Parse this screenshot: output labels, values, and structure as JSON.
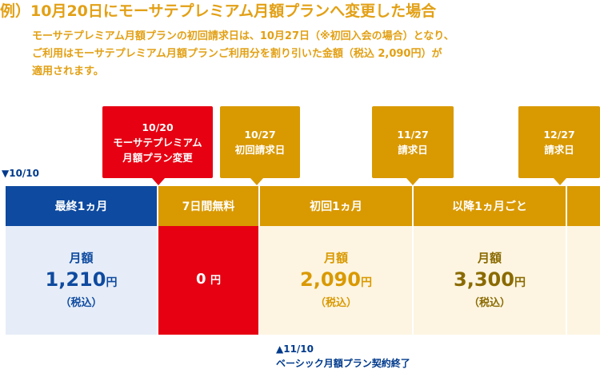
{
  "title": "例）10月20日にモーサテプレミアム月額プランへ変更した場合",
  "description": {
    "line1": "モーサテプレミアム月額プランの初回請求日は、10月27日（※初回入会の場合）となり、",
    "line2": "ご利用はモーサテプレミアム月額プランご利用分を割り引いた金額（税込 2,090円）が",
    "line3": "適用されます。"
  },
  "callouts": {
    "change": {
      "line1": "10/20",
      "line2": "モーサテプレミアム",
      "line3": "月額プラン変更"
    },
    "first_billing": {
      "line1": "10/27",
      "line2": "初回請求日"
    },
    "billing_nov": {
      "line1": "11/27",
      "line2": "請求日"
    },
    "billing_dec": {
      "line1": "12/27",
      "line2": "請求日"
    }
  },
  "start_label": "▼10/10",
  "columns": {
    "last_month": {
      "header": "最終1ヵ月",
      "label": "月額",
      "price": "1,210",
      "yen": "円",
      "tax": "（税込）"
    },
    "free_trial": {
      "header": "7日間無料",
      "price": "0",
      "yen": "円"
    },
    "first_month": {
      "header": "初回1ヵ月",
      "label": "月額",
      "price": "2,090",
      "yen": "円",
      "tax": "（税込）"
    },
    "after": {
      "header": "以降1ヵ月ごと",
      "label": "月額",
      "price": "3,300",
      "yen": "円",
      "tax": "（税込）"
    }
  },
  "end_note": {
    "line1": "▲11/10",
    "line2": "ベーシック月額プラン契約終了"
  },
  "colors": {
    "navy": "#0e4a9f",
    "red": "#e60012",
    "gold": "#d99900",
    "light_blue": "#e6edf8",
    "cream": "#fdf5e2"
  }
}
